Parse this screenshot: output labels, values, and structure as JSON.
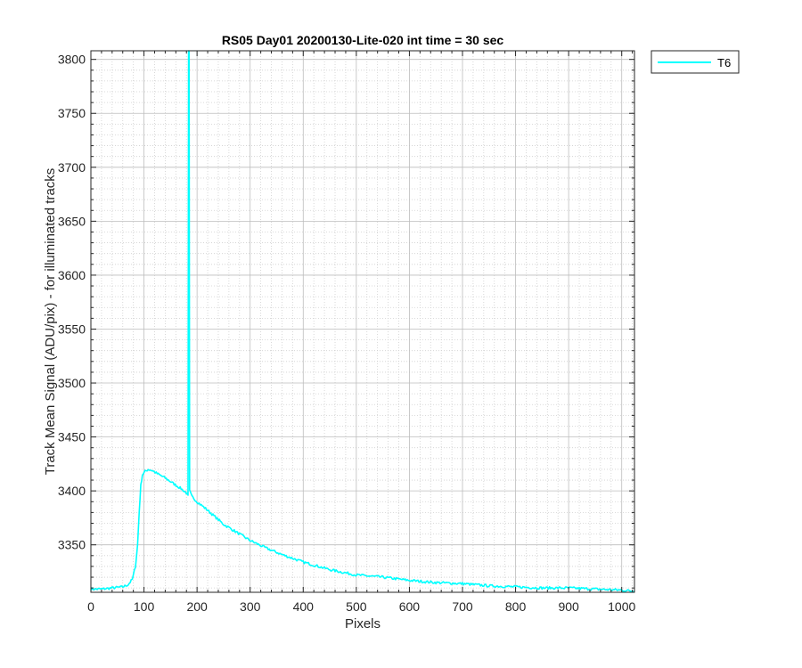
{
  "chart_data": {
    "type": "line",
    "title": "RS05 Day01 20200130-Lite-020 int time = 30 sec",
    "xlabel": "Pixels",
    "ylabel": "Track Mean Signal (ADU/pix) - for illuminated tracks",
    "xlim": [
      0,
      1024
    ],
    "ylim": [
      3306,
      3808
    ],
    "xticks": [
      0,
      100,
      200,
      300,
      400,
      500,
      600,
      700,
      800,
      900,
      1000
    ],
    "yticks": [
      3350,
      3400,
      3450,
      3500,
      3550,
      3600,
      3650,
      3700,
      3750,
      3800
    ],
    "grid": true,
    "minor_grid": true,
    "legend_position": "outside-top-right",
    "series": [
      {
        "name": "T6",
        "color": "#00FFFF",
        "points": [
          [
            0,
            3309
          ],
          [
            20,
            3309
          ],
          [
            40,
            3310
          ],
          [
            60,
            3311
          ],
          [
            70,
            3313
          ],
          [
            78,
            3318
          ],
          [
            84,
            3330
          ],
          [
            88,
            3350
          ],
          [
            91,
            3380
          ],
          [
            94,
            3405
          ],
          [
            97,
            3415
          ],
          [
            102,
            3418
          ],
          [
            108,
            3420
          ],
          [
            115,
            3419
          ],
          [
            125,
            3416
          ],
          [
            140,
            3412
          ],
          [
            155,
            3407
          ],
          [
            170,
            3402
          ],
          [
            180,
            3398
          ],
          [
            183,
            3396
          ],
          [
            184,
            3808
          ],
          [
            185,
            3808
          ],
          [
            186,
            3400
          ],
          [
            190,
            3395
          ],
          [
            200,
            3390
          ],
          [
            220,
            3382
          ],
          [
            250,
            3369
          ],
          [
            280,
            3360
          ],
          [
            300,
            3354
          ],
          [
            330,
            3347
          ],
          [
            360,
            3341
          ],
          [
            400,
            3334
          ],
          [
            450,
            3327
          ],
          [
            500,
            3322
          ],
          [
            550,
            3320
          ],
          [
            600,
            3317
          ],
          [
            650,
            3315
          ],
          [
            700,
            3314
          ],
          [
            750,
            3312
          ],
          [
            800,
            3311
          ],
          [
            850,
            3310
          ],
          [
            900,
            3310
          ],
          [
            950,
            3309
          ],
          [
            1000,
            3308
          ],
          [
            1024,
            3307
          ]
        ]
      }
    ]
  }
}
